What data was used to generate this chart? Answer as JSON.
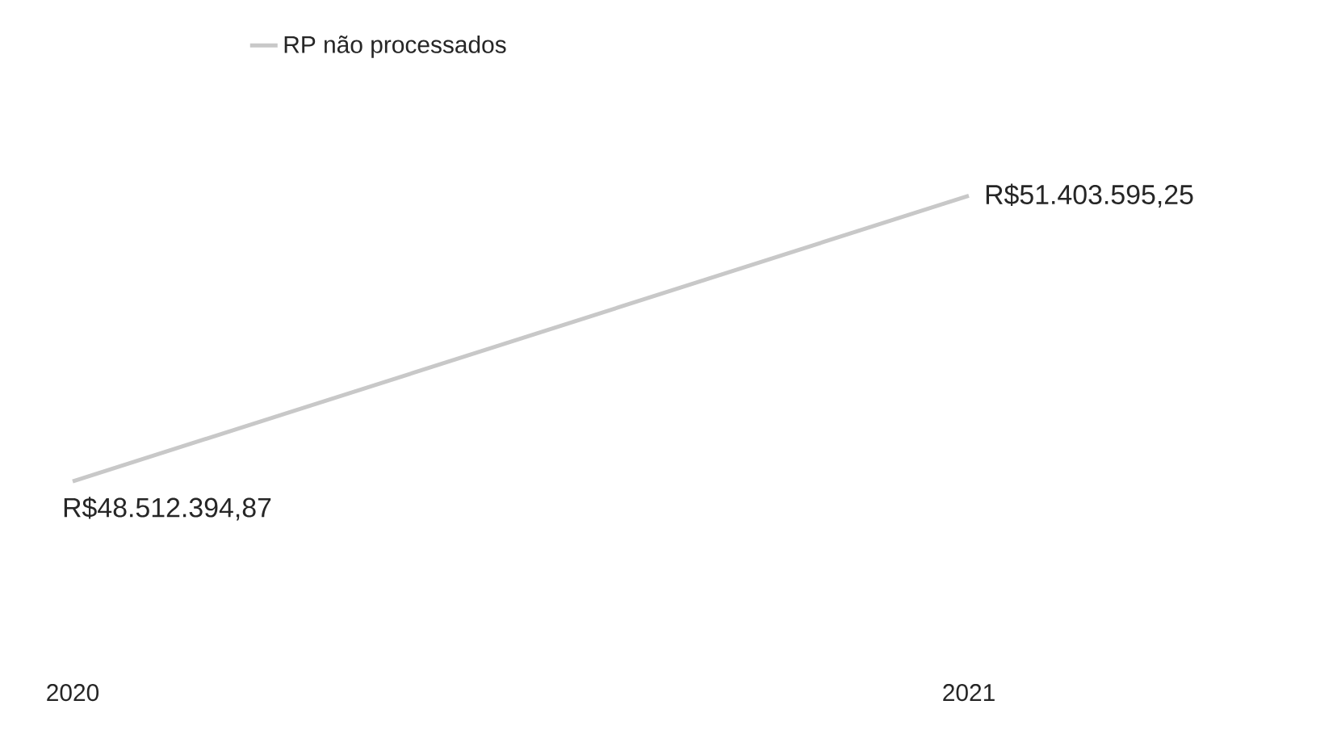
{
  "chart_data": {
    "type": "line",
    "categories": [
      "2020",
      "2021"
    ],
    "series": [
      {
        "name": "RP não processados",
        "color": "#c8c8c8",
        "values": [
          48512394.87,
          51403595.25
        ],
        "value_labels": [
          "R$48.512.394,87",
          "R$51.403.595,25"
        ]
      }
    ],
    "legend": "top left",
    "grid": false,
    "marker": "none",
    "line_style": "solid"
  }
}
